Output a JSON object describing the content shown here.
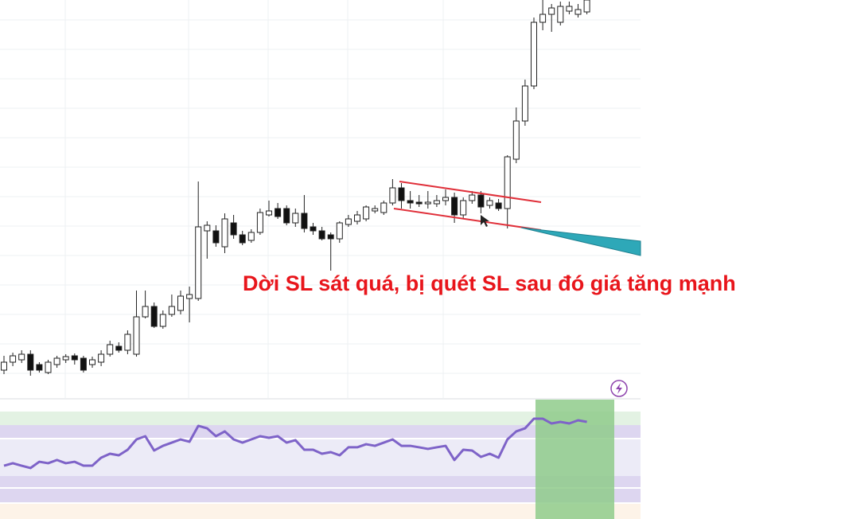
{
  "chart_data": {
    "type": "candlestick",
    "ylim": [
      0,
      100
    ],
    "candles": [
      [
        7,
        10.6,
        6,
        9
      ],
      [
        9,
        11.4,
        8,
        10.6
      ],
      [
        9.6,
        12,
        8.8,
        11
      ],
      [
        11,
        12,
        5.6,
        7
      ],
      [
        8.4,
        9,
        6.4,
        7
      ],
      [
        6.4,
        9.6,
        6,
        9
      ],
      [
        8.4,
        10.6,
        7.6,
        10
      ],
      [
        9.6,
        11,
        8.8,
        10.4
      ],
      [
        10.6,
        11.2,
        8.4,
        9.6
      ],
      [
        10,
        10.6,
        6.4,
        7
      ],
      [
        8.4,
        10.4,
        7.6,
        9.6
      ],
      [
        9,
        12,
        8,
        11
      ],
      [
        11,
        14.4,
        10.4,
        13.4
      ],
      [
        13,
        14,
        11.4,
        12
      ],
      [
        12,
        17,
        11,
        16
      ],
      [
        11,
        27,
        10.4,
        20.4
      ],
      [
        20.4,
        27,
        20,
        23
      ],
      [
        23,
        24,
        17.6,
        18
      ],
      [
        18,
        22,
        17.4,
        21
      ],
      [
        21,
        26,
        20.4,
        23
      ],
      [
        22,
        27,
        21,
        25.6
      ],
      [
        25,
        28,
        19,
        26
      ],
      [
        25,
        54.4,
        24.4,
        43
      ],
      [
        42,
        44.4,
        35,
        43.4
      ],
      [
        42,
        43.4,
        38,
        39
      ],
      [
        38,
        46.4,
        36.4,
        45
      ],
      [
        44,
        46,
        40,
        41
      ],
      [
        41,
        42,
        38.4,
        39
      ],
      [
        39.6,
        42.4,
        39,
        41.6
      ],
      [
        41.6,
        47.6,
        41,
        46.6
      ],
      [
        46,
        49.6,
        45.6,
        47
      ],
      [
        47.6,
        49,
        45,
        45.6
      ],
      [
        47.6,
        48.4,
        43.4,
        44
      ],
      [
        44,
        47.6,
        43,
        46.4
      ],
      [
        46.4,
        51,
        41.6,
        42.6
      ],
      [
        43,
        44,
        41,
        42
      ],
      [
        42,
        43,
        39.6,
        40
      ],
      [
        41,
        41.6,
        32,
        40
      ],
      [
        40,
        44.4,
        39,
        44
      ],
      [
        43.6,
        46,
        43,
        45
      ],
      [
        44.4,
        47,
        43.6,
        46
      ],
      [
        45,
        48.4,
        44.4,
        48
      ],
      [
        47,
        48.4,
        46.4,
        47.6
      ],
      [
        46.6,
        49.6,
        46,
        49
      ],
      [
        49,
        55,
        48.4,
        52.8
      ],
      [
        52.8,
        54,
        47.6,
        49.6
      ],
      [
        49.6,
        52,
        47.6,
        49
      ],
      [
        49.2,
        51,
        48,
        48.8
      ],
      [
        48.8,
        52,
        47.6,
        49.2
      ],
      [
        48.8,
        51,
        48,
        49.6
      ],
      [
        49.6,
        52.4,
        48.4,
        50.4
      ],
      [
        50.4,
        51.6,
        44,
        46
      ],
      [
        46,
        50.4,
        45,
        49.6
      ],
      [
        49.6,
        52,
        48.8,
        51
      ],
      [
        51,
        52,
        46.4,
        48
      ],
      [
        48.4,
        50.4,
        47.6,
        49.6
      ],
      [
        49,
        50,
        47,
        47.6
      ],
      [
        47.6,
        61,
        42.6,
        60.6
      ],
      [
        60,
        73,
        59,
        69.6
      ],
      [
        69.6,
        80,
        68.4,
        78.4
      ],
      [
        78.4,
        95.6,
        77.6,
        94.4
      ],
      [
        94.4,
        100,
        92.4,
        96.4
      ],
      [
        96.4,
        99,
        92,
        98
      ],
      [
        94.4,
        99.6,
        93.6,
        98.4
      ],
      [
        97.2,
        99.6,
        96.4,
        98.4
      ],
      [
        96.4,
        99,
        95.6,
        97.6
      ],
      [
        97,
        100,
        96.4,
        100
      ]
    ],
    "rsi": {
      "color": "#7e63c8",
      "ylim": [
        10,
        90
      ],
      "values": [
        47.4,
        49.4,
        47.4,
        45.5,
        50.6,
        49.4,
        52,
        49.4,
        50.6,
        47.4,
        47.4,
        53.9,
        57.1,
        55.8,
        60.3,
        68.7,
        71.3,
        59.7,
        63.5,
        66.1,
        68.7,
        66.8,
        79.7,
        77.7,
        71.3,
        75.2,
        68.7,
        66.1,
        68.7,
        71.3,
        70,
        71.3,
        66.1,
        68.1,
        60.3,
        60.3,
        57.1,
        58.4,
        55.8,
        62.3,
        62.3,
        64.8,
        63.5,
        66.1,
        68.7,
        63.5,
        63.5,
        62.3,
        61,
        62.3,
        63.5,
        52,
        60.3,
        59.7,
        54.5,
        57.1,
        53.9,
        68.7,
        75.2,
        77.7,
        85.5,
        85.5,
        81.6,
        82.9,
        81.6,
        84.2,
        82.9
      ]
    },
    "annotation": "Dời SL sát quá, bị quét SL sau đó giá tăng mạnh"
  }
}
